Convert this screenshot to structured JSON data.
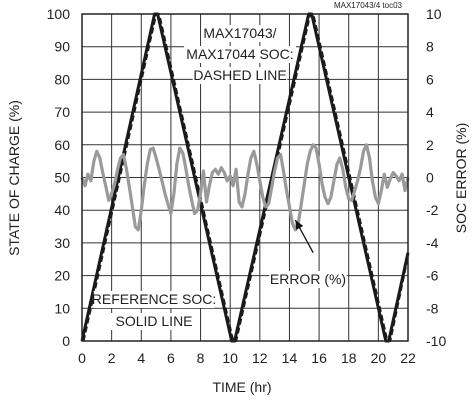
{
  "chart_data": {
    "type": "line",
    "tag": "MAX17043/4 toc03",
    "xlabel": "TIME (hr)",
    "ylabel_left": "STATE OF CHARGE (%)",
    "ylabel_right": "SOC ERROR (%)",
    "xlim": [
      0,
      22
    ],
    "ylim_left": [
      0,
      100
    ],
    "ylim_right": [
      -10,
      10
    ],
    "xticks": [
      "0",
      "2",
      "4",
      "6",
      "8",
      "10",
      "12",
      "14",
      "16",
      "18",
      "20",
      "22"
    ],
    "yticks_left": [
      "0",
      "10",
      "20",
      "30",
      "40",
      "50",
      "60",
      "70",
      "80",
      "90",
      "100"
    ],
    "yticks_right": [
      "-10",
      "-8",
      "-6",
      "-4",
      "-2",
      "0",
      "2",
      "4",
      "6",
      "8",
      "10"
    ],
    "grid": true,
    "annotations": {
      "dashed": [
        "MAX17043/",
        "MAX17044 SOC:",
        "DASHED LINE"
      ],
      "reference": [
        "REFERENCE SOC:",
        "SOLID LINE"
      ],
      "error": "ERROR (%)"
    },
    "series": [
      {
        "axis": "left",
        "style": "solid",
        "color": "#1a1a1a",
        "points": [
          [
            0,
            0
          ],
          [
            4.9,
            100
          ],
          [
            5.1,
            100
          ],
          [
            10.1,
            0
          ],
          [
            10.3,
            0
          ],
          [
            15.3,
            100
          ],
          [
            15.5,
            100
          ],
          [
            20.5,
            0
          ],
          [
            20.7,
            0
          ],
          [
            22,
            27
          ]
        ]
      },
      {
        "axis": "left",
        "style": "dashed",
        "color": "#1a1a1a",
        "points": [
          [
            0.1,
            0
          ],
          [
            5.0,
            100
          ],
          [
            5.2,
            100
          ],
          [
            10.2,
            0
          ],
          [
            10.4,
            0
          ],
          [
            15.4,
            100
          ],
          [
            15.6,
            100
          ],
          [
            20.6,
            0
          ],
          [
            20.8,
            0
          ],
          [
            22,
            26
          ]
        ]
      },
      {
        "axis": "right",
        "style": "solid",
        "color": "#9a9a9a",
        "points": [
          [
            0,
            0
          ],
          [
            0.2,
            -0.5
          ],
          [
            0.4,
            0.2
          ],
          [
            0.6,
            -0.2
          ],
          [
            0.8,
            1.0
          ],
          [
            1.0,
            1.6
          ],
          [
            1.2,
            1.2
          ],
          [
            1.4,
            0.3
          ],
          [
            1.6,
            -0.5
          ],
          [
            1.8,
            -1.4
          ],
          [
            2.0,
            -1.0
          ],
          [
            2.2,
            -0.4
          ],
          [
            2.4,
            0.5
          ],
          [
            2.6,
            1.2
          ],
          [
            2.8,
            1.4
          ],
          [
            3.0,
            0.5
          ],
          [
            3.2,
            -0.6
          ],
          [
            3.4,
            -1.8
          ],
          [
            3.6,
            -3.0
          ],
          [
            3.8,
            -3.2
          ],
          [
            4.0,
            -2.0
          ],
          [
            4.2,
            -0.5
          ],
          [
            4.4,
            0.8
          ],
          [
            4.6,
            1.7
          ],
          [
            4.8,
            1.8
          ],
          [
            5.0,
            1.2
          ],
          [
            5.2,
            0.5
          ],
          [
            5.4,
            -0.2
          ],
          [
            5.6,
            -1.0
          ],
          [
            5.8,
            -1.6
          ],
          [
            6.0,
            -2.2
          ],
          [
            6.2,
            -1.0
          ],
          [
            6.4,
            0.8
          ],
          [
            6.6,
            1.8
          ],
          [
            6.8,
            1.5
          ],
          [
            7.0,
            0.6
          ],
          [
            7.2,
            -0.5
          ],
          [
            7.4,
            -1.4
          ],
          [
            7.6,
            -2.2
          ],
          [
            7.8,
            -2.0
          ],
          [
            8.0,
            -1.0
          ],
          [
            8.2,
            0.4
          ],
          [
            8.4,
            -1.5
          ],
          [
            8.6,
            -0.5
          ],
          [
            8.8,
            0.3
          ],
          [
            9.0,
            0.5
          ],
          [
            9.2,
            0.2
          ],
          [
            9.4,
            0.6
          ],
          [
            9.6,
            0.3
          ],
          [
            9.8,
            -0.2
          ],
          [
            10.0,
            0.1
          ],
          [
            10.2,
            -0.5
          ],
          [
            10.4,
            0.5
          ],
          [
            10.6,
            -1.5
          ],
          [
            10.8,
            -1.8
          ],
          [
            11.0,
            -1.0
          ],
          [
            11.2,
            0.2
          ],
          [
            11.4,
            1.2
          ],
          [
            11.6,
            1.6
          ],
          [
            11.8,
            0.8
          ],
          [
            12.0,
            -0.2
          ],
          [
            12.2,
            -1.2
          ],
          [
            12.4,
            -1.8
          ],
          [
            12.6,
            -1.6
          ],
          [
            12.8,
            -0.6
          ],
          [
            13.0,
            0.4
          ],
          [
            13.2,
            1.2
          ],
          [
            13.4,
            1.4
          ],
          [
            13.6,
            0.4
          ],
          [
            13.8,
            -0.8
          ],
          [
            14.0,
            -1.8
          ],
          [
            14.2,
            -2.8
          ],
          [
            14.4,
            -3.2
          ],
          [
            14.6,
            -2.8
          ],
          [
            14.8,
            -1.6
          ],
          [
            15.0,
            -0.4
          ],
          [
            15.2,
            0.8
          ],
          [
            15.4,
            1.6
          ],
          [
            15.6,
            2.0
          ],
          [
            15.8,
            1.8
          ],
          [
            16.0,
            0.8
          ],
          [
            16.2,
            -0.4
          ],
          [
            16.4,
            -1.2
          ],
          [
            16.6,
            -1.6
          ],
          [
            16.8,
            -1.2
          ],
          [
            17.0,
            -0.2
          ],
          [
            17.2,
            0.8
          ],
          [
            17.4,
            1.2
          ],
          [
            17.6,
            0.5
          ],
          [
            17.8,
            -0.6
          ],
          [
            18.0,
            -1.3
          ],
          [
            18.2,
            -1.4
          ],
          [
            18.4,
            -0.8
          ],
          [
            18.6,
            -0.2
          ],
          [
            18.8,
            0.6
          ],
          [
            19.0,
            1.6
          ],
          [
            19.2,
            2.0
          ],
          [
            19.4,
            1.2
          ],
          [
            19.6,
            -0.2
          ],
          [
            19.8,
            -1.2
          ],
          [
            20.0,
            -1.6
          ],
          [
            20.2,
            -0.8
          ],
          [
            20.4,
            0.2
          ],
          [
            20.6,
            -0.6
          ],
          [
            20.8,
            -0.1
          ],
          [
            21.0,
            0.3
          ],
          [
            21.2,
            0.1
          ],
          [
            21.4,
            -0.2
          ],
          [
            21.6,
            0.2
          ],
          [
            21.8,
            -0.8
          ],
          [
            22.0,
            0.0
          ]
        ]
      }
    ],
    "error_arrow": {
      "from": [
        15.6,
        -4.6
      ],
      "to": [
        14.4,
        -2.6
      ]
    }
  }
}
